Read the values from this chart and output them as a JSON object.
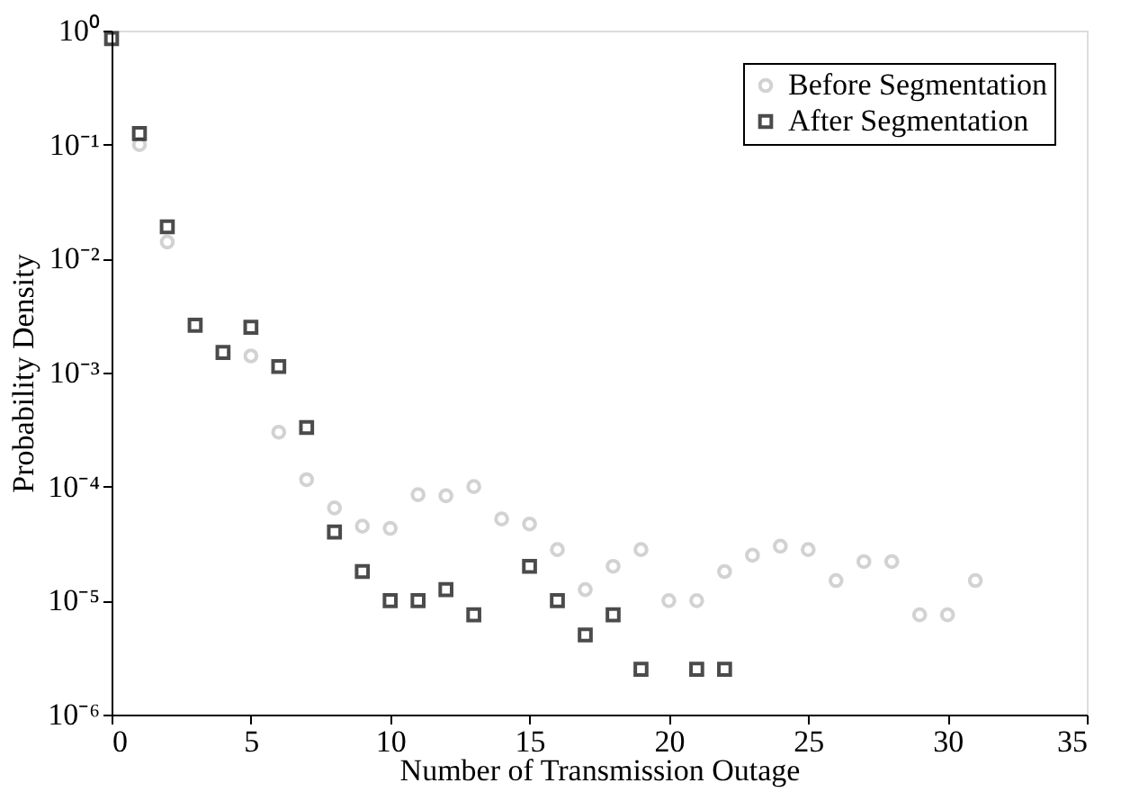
{
  "chart_data": {
    "type": "scatter",
    "xlabel": "Number of Transmission Outage",
    "ylabel": "Probability Density",
    "x": [
      0,
      1,
      2,
      3,
      4,
      5,
      6,
      7,
      8,
      9,
      10,
      11,
      12,
      13,
      14,
      15,
      16,
      17,
      18,
      19,
      20,
      21,
      22,
      23,
      24,
      25,
      26,
      27,
      28,
      29,
      30,
      31
    ],
    "series": [
      {
        "name": "Before Segmentation",
        "color": "#c0c0c0",
        "marker": "circle",
        "values": [
          null,
          0.1,
          0.014,
          null,
          null,
          0.0014,
          0.0003,
          0.000115,
          6.5e-05,
          4.5e-05,
          4.3e-05,
          8.5e-05,
          8.3e-05,
          0.0001,
          5.2e-05,
          4.7e-05,
          2.8e-05,
          1.25e-05,
          2e-05,
          2.8e-05,
          1e-05,
          1e-05,
          1.8e-05,
          2.5e-05,
          3e-05,
          2.8e-05,
          1.5e-05,
          2.2e-05,
          2.2e-05,
          7.5e-06,
          7.5e-06,
          1.5e-05
        ]
      },
      {
        "name": "After Segmentation",
        "color": "#000000",
        "marker": "square",
        "values": [
          0.85,
          0.125,
          0.019,
          0.0026,
          0.0015,
          0.0025,
          0.00113,
          0.00033,
          4e-05,
          1.8e-05,
          1e-05,
          1e-05,
          1.25e-05,
          7.5e-06,
          null,
          2e-05,
          1e-05,
          5e-06,
          7.5e-06,
          2.5e-06,
          null,
          2.5e-06,
          2.5e-06,
          null,
          null,
          null,
          null,
          null,
          null,
          null,
          null,
          null
        ]
      }
    ],
    "xlim": [
      0,
      35
    ],
    "xticks": [
      0,
      5,
      10,
      15,
      20,
      25,
      30,
      35
    ],
    "ylim": [
      1e-06,
      1
    ],
    "log": true,
    "yticks": [
      {
        "value": 1e-06,
        "label": "10⁻⁶"
      },
      {
        "value": 1e-05,
        "label": "10⁻⁵"
      },
      {
        "value": 0.0001,
        "label": "10⁻⁴"
      },
      {
        "value": 0.001,
        "label": "10⁻³"
      },
      {
        "value": 0.01,
        "label": "10⁻²"
      },
      {
        "value": 0.1,
        "label": "10⁻¹"
      },
      {
        "value": 1,
        "label": "10⁰"
      }
    ],
    "grid": false,
    "legend": "top right"
  }
}
